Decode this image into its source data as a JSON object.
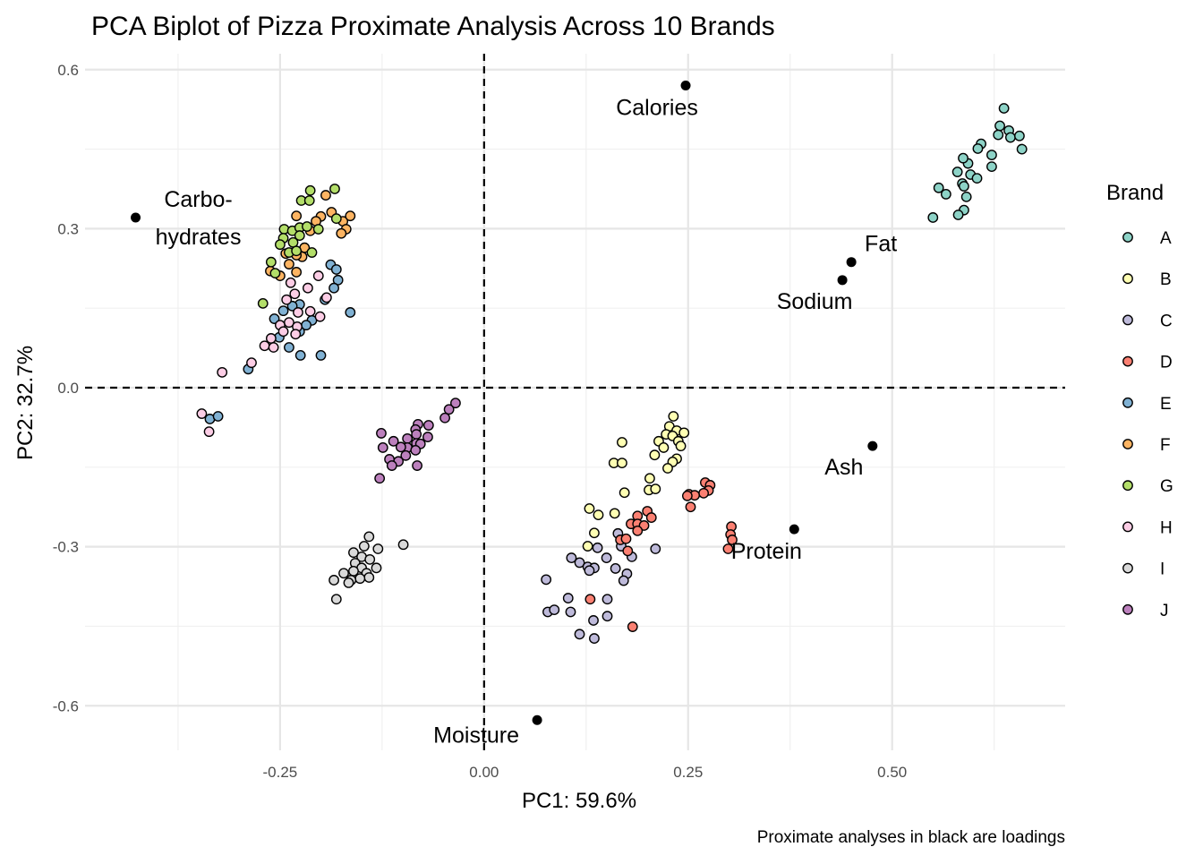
{
  "chart_data": {
    "type": "scatter",
    "title": "PCA Biplot of Pizza Proximate Analysis Across 10 Brands",
    "xlabel": "PC1: 59.6%",
    "ylabel": "PC2: 32.7%",
    "caption": "Proximate analyses in black are loadings",
    "xlim": [
      -0.489,
      0.712
    ],
    "ylim": [
      -0.684,
      0.63
    ],
    "x_ticks": [
      -0.25,
      0,
      0.25,
      0.5
    ],
    "x_tick_labels": [
      "-0.25",
      "0.00",
      "0.25",
      "0.50"
    ],
    "y_ticks": [
      -0.6,
      -0.3,
      0,
      0.3,
      0.6
    ],
    "y_tick_labels": [
      "-0.6",
      "-0.3",
      "0.0",
      "0.3",
      "0.6"
    ],
    "grid": true,
    "reference_lines": {
      "x": 0,
      "y": 0,
      "style": "dashed"
    },
    "legend": {
      "title": "Brand",
      "placement": "right"
    },
    "series": [
      {
        "name": "A",
        "color": "#8DD3C7",
        "points": [
          [
            0.637,
            0.527
          ],
          [
            0.632,
            0.494
          ],
          [
            0.643,
            0.485
          ],
          [
            0.645,
            0.472
          ],
          [
            0.656,
            0.475
          ],
          [
            0.63,
            0.477
          ],
          [
            0.659,
            0.45
          ],
          [
            0.609,
            0.46
          ],
          [
            0.605,
            0.451
          ],
          [
            0.622,
            0.439
          ],
          [
            0.622,
            0.417
          ],
          [
            0.593,
            0.423
          ],
          [
            0.587,
            0.433
          ],
          [
            0.58,
            0.407
          ],
          [
            0.596,
            0.402
          ],
          [
            0.604,
            0.395
          ],
          [
            0.586,
            0.385
          ],
          [
            0.588,
            0.38
          ],
          [
            0.591,
            0.36
          ],
          [
            0.588,
            0.335
          ],
          [
            0.581,
            0.326
          ],
          [
            0.557,
            0.377
          ],
          [
            0.566,
            0.365
          ],
          [
            0.55,
            0.321
          ]
        ]
      },
      {
        "name": "B",
        "color": "#FFFFB3",
        "points": [
          [
            0.232,
            -0.054
          ],
          [
            0.227,
            -0.073
          ],
          [
            0.236,
            -0.081
          ],
          [
            0.245,
            -0.085
          ],
          [
            0.223,
            -0.088
          ],
          [
            0.231,
            -0.091
          ],
          [
            0.214,
            -0.101
          ],
          [
            0.238,
            -0.101
          ],
          [
            0.241,
            -0.11
          ],
          [
            0.22,
            -0.113
          ],
          [
            0.169,
            -0.103
          ],
          [
            0.209,
            -0.127
          ],
          [
            0.236,
            -0.134
          ],
          [
            0.231,
            -0.14
          ],
          [
            0.225,
            -0.152
          ],
          [
            0.159,
            -0.142
          ],
          [
            0.169,
            -0.142
          ],
          [
            0.203,
            -0.171
          ],
          [
            0.202,
            -0.193
          ],
          [
            0.21,
            -0.191
          ],
          [
            0.172,
            -0.198
          ],
          [
            0.129,
            -0.228
          ],
          [
            0.14,
            -0.24
          ],
          [
            0.16,
            -0.237
          ],
          [
            0.135,
            -0.274
          ],
          [
            0.127,
            -0.299
          ]
        ]
      },
      {
        "name": "C",
        "color": "#BEBADA",
        "points": [
          [
            0.164,
            -0.275
          ],
          [
            0.139,
            -0.302
          ],
          [
            0.21,
            -0.304
          ],
          [
            0.107,
            -0.321
          ],
          [
            0.117,
            -0.33
          ],
          [
            0.127,
            -0.338
          ],
          [
            0.135,
            -0.34
          ],
          [
            0.129,
            -0.345
          ],
          [
            0.15,
            -0.321
          ],
          [
            0.161,
            -0.341
          ],
          [
            0.181,
            -0.319
          ],
          [
            0.175,
            -0.351
          ],
          [
            0.171,
            -0.364
          ],
          [
            0.076,
            -0.362
          ],
          [
            0.103,
            -0.397
          ],
          [
            0.151,
            -0.399
          ],
          [
            0.078,
            -0.423
          ],
          [
            0.086,
            -0.419
          ],
          [
            0.106,
            -0.423
          ],
          [
            0.151,
            -0.431
          ],
          [
            0.134,
            -0.439
          ],
          [
            0.117,
            -0.465
          ],
          [
            0.135,
            -0.473
          ],
          [
            0.168,
            -0.299
          ]
        ]
      },
      {
        "name": "D",
        "color": "#FB8072",
        "points": [
          [
            0.271,
            -0.179
          ],
          [
            0.277,
            -0.184
          ],
          [
            0.275,
            -0.194
          ],
          [
            0.269,
            -0.199
          ],
          [
            0.251,
            -0.201
          ],
          [
            0.258,
            -0.203
          ],
          [
            0.249,
            -0.204
          ],
          [
            0.253,
            -0.225
          ],
          [
            0.2,
            -0.233
          ],
          [
            0.188,
            -0.242
          ],
          [
            0.205,
            -0.245
          ],
          [
            0.18,
            -0.257
          ],
          [
            0.188,
            -0.257
          ],
          [
            0.196,
            -0.26
          ],
          [
            0.188,
            -0.27
          ],
          [
            0.167,
            -0.287
          ],
          [
            0.174,
            -0.285
          ],
          [
            0.176,
            -0.308
          ],
          [
            0.303,
            -0.262
          ],
          [
            0.302,
            -0.277
          ],
          [
            0.304,
            -0.287
          ],
          [
            0.299,
            -0.304
          ],
          [
            0.13,
            -0.399
          ],
          [
            0.182,
            -0.451
          ]
        ]
      },
      {
        "name": "E",
        "color": "#80B1D3",
        "points": [
          [
            -0.188,
            0.232
          ],
          [
            -0.181,
            0.223
          ],
          [
            -0.179,
            0.203
          ],
          [
            -0.184,
            0.188
          ],
          [
            -0.195,
            0.166
          ],
          [
            -0.164,
            0.142
          ],
          [
            -0.246,
            0.145
          ],
          [
            -0.226,
            0.157
          ],
          [
            -0.235,
            0.154
          ],
          [
            -0.211,
            0.127
          ],
          [
            -0.257,
            0.13
          ],
          [
            -0.218,
            0.118
          ],
          [
            -0.226,
            0.106
          ],
          [
            -0.251,
            0.095
          ],
          [
            -0.239,
            0.076
          ],
          [
            -0.225,
            0.061
          ],
          [
            -0.2,
            0.061
          ],
          [
            -0.289,
            0.035
          ],
          [
            -0.336,
            -0.059
          ],
          [
            -0.326,
            -0.054
          ]
        ]
      },
      {
        "name": "F",
        "color": "#FDB462",
        "points": [
          [
            -0.194,
            0.363
          ],
          [
            -0.23,
            0.324
          ],
          [
            -0.2,
            0.323
          ],
          [
            -0.187,
            0.331
          ],
          [
            -0.206,
            0.314
          ],
          [
            -0.173,
            0.314
          ],
          [
            -0.164,
            0.324
          ],
          [
            -0.169,
            0.299
          ],
          [
            -0.175,
            0.291
          ],
          [
            -0.213,
            0.296
          ],
          [
            -0.22,
            0.264
          ],
          [
            -0.243,
            0.253
          ],
          [
            -0.223,
            0.247
          ],
          [
            -0.23,
            0.25
          ],
          [
            -0.239,
            0.233
          ],
          [
            -0.262,
            0.22
          ],
          [
            -0.25,
            0.211
          ],
          [
            -0.23,
            0.218
          ]
        ]
      },
      {
        "name": "G",
        "color": "#B3DE69",
        "points": [
          [
            -0.213,
            0.372
          ],
          [
            -0.183,
            0.375
          ],
          [
            -0.224,
            0.353
          ],
          [
            -0.214,
            0.353
          ],
          [
            -0.181,
            0.319
          ],
          [
            -0.245,
            0.299
          ],
          [
            -0.235,
            0.296
          ],
          [
            -0.226,
            0.302
          ],
          [
            -0.217,
            0.304
          ],
          [
            -0.203,
            0.299
          ],
          [
            -0.246,
            0.282
          ],
          [
            -0.226,
            0.287
          ],
          [
            -0.25,
            0.27
          ],
          [
            -0.234,
            0.274
          ],
          [
            -0.239,
            0.255
          ],
          [
            -0.211,
            0.255
          ],
          [
            -0.261,
            0.237
          ],
          [
            -0.256,
            0.216
          ],
          [
            -0.271,
            0.159
          ],
          [
            -0.23,
            0.258
          ]
        ]
      },
      {
        "name": "H",
        "color": "#FCCDE5",
        "points": [
          [
            -0.203,
            0.211
          ],
          [
            -0.237,
            0.198
          ],
          [
            -0.216,
            0.188
          ],
          [
            -0.232,
            0.177
          ],
          [
            -0.193,
            0.17
          ],
          [
            -0.242,
            0.166
          ],
          [
            -0.228,
            0.142
          ],
          [
            -0.213,
            0.144
          ],
          [
            -0.201,
            0.134
          ],
          [
            -0.239,
            0.123
          ],
          [
            -0.229,
            0.115
          ],
          [
            -0.25,
            0.118
          ],
          [
            -0.246,
            0.106
          ],
          [
            -0.231,
            0.101
          ],
          [
            -0.261,
            0.093
          ],
          [
            -0.269,
            0.079
          ],
          [
            -0.258,
            0.076
          ],
          [
            -0.285,
            0.047
          ],
          [
            -0.321,
            0.029
          ],
          [
            -0.346,
            -0.049
          ],
          [
            -0.337,
            -0.083
          ]
        ]
      },
      {
        "name": "I",
        "color": "#D9D9D9",
        "points": [
          [
            -0.141,
            -0.281
          ],
          [
            -0.13,
            -0.304
          ],
          [
            -0.147,
            -0.299
          ],
          [
            -0.16,
            -0.311
          ],
          [
            -0.15,
            -0.319
          ],
          [
            -0.14,
            -0.324
          ],
          [
            -0.132,
            -0.34
          ],
          [
            -0.158,
            -0.331
          ],
          [
            -0.15,
            -0.34
          ],
          [
            -0.144,
            -0.35
          ],
          [
            -0.16,
            -0.346
          ],
          [
            -0.172,
            -0.35
          ],
          [
            -0.141,
            -0.358
          ],
          [
            -0.152,
            -0.36
          ],
          [
            -0.163,
            -0.363
          ],
          [
            -0.184,
            -0.363
          ],
          [
            -0.166,
            -0.368
          ],
          [
            -0.181,
            -0.399
          ],
          [
            -0.099,
            -0.296
          ]
        ]
      },
      {
        "name": "J",
        "color": "#BC80BD",
        "points": [
          [
            -0.035,
            -0.029
          ],
          [
            -0.043,
            -0.041
          ],
          [
            -0.048,
            -0.057
          ],
          [
            -0.068,
            -0.071
          ],
          [
            -0.081,
            -0.069
          ],
          [
            -0.084,
            -0.079
          ],
          [
            -0.069,
            -0.093
          ],
          [
            -0.083,
            -0.088
          ],
          [
            -0.094,
            -0.096
          ],
          [
            -0.083,
            -0.105
          ],
          [
            -0.094,
            -0.113
          ],
          [
            -0.078,
            -0.106
          ],
          [
            -0.111,
            -0.101
          ],
          [
            -0.102,
            -0.112
          ],
          [
            -0.096,
            -0.128
          ],
          [
            -0.082,
            -0.147
          ],
          [
            -0.105,
            -0.139
          ],
          [
            -0.116,
            -0.135
          ],
          [
            -0.113,
            -0.147
          ],
          [
            -0.126,
            -0.086
          ],
          [
            -0.124,
            -0.113
          ],
          [
            -0.128,
            -0.171
          ],
          [
            -0.084,
            -0.118
          ]
        ]
      }
    ],
    "loadings": [
      {
        "name": "Calories",
        "label_lines": [
          "Calories"
        ],
        "x": 0.247,
        "y": 0.57
      },
      {
        "name": "Carbohydrates",
        "label_lines": [
          "Carbo-",
          "hydrates"
        ],
        "x": -0.427,
        "y": 0.321
      },
      {
        "name": "Fat",
        "label_lines": [
          "Fat"
        ],
        "x": 0.45,
        "y": 0.237
      },
      {
        "name": "Sodium",
        "label_lines": [
          "Sodium"
        ],
        "x": 0.439,
        "y": 0.203
      },
      {
        "name": "Ash",
        "label_lines": [
          "Ash"
        ],
        "x": 0.476,
        "y": -0.11
      },
      {
        "name": "Protein",
        "label_lines": [
          "Protein"
        ],
        "x": 0.38,
        "y": -0.267
      },
      {
        "name": "Moisture",
        "label_lines": [
          "Moisture"
        ],
        "x": 0.065,
        "y": -0.627
      }
    ]
  }
}
